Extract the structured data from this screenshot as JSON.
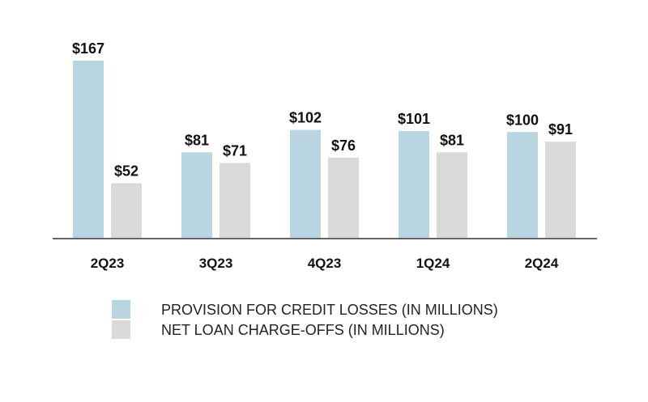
{
  "chart_data": {
    "type": "bar",
    "categories": [
      "2Q23",
      "3Q23",
      "4Q23",
      "1Q24",
      "2Q24"
    ],
    "series": [
      {
        "name": "PROVISION FOR CREDIT LOSSES (IN MILLIONS)",
        "values": [
          167,
          81,
          102,
          101,
          100
        ],
        "value_labels": [
          "$167",
          "$81",
          "$102",
          "$101",
          "$100"
        ],
        "color": "#b9d5e1"
      },
      {
        "name": "NET LOAN CHARGE-OFFS (IN MILLIONS)",
        "values": [
          52,
          71,
          76,
          81,
          91
        ],
        "value_labels": [
          "$52",
          "$71",
          "$76",
          "$81",
          "$91"
        ],
        "color": "#d9d9d9"
      }
    ],
    "ylim": [
      0,
      167
    ],
    "grid": false,
    "legend_position": "bottom",
    "axis_color": "#666666"
  }
}
